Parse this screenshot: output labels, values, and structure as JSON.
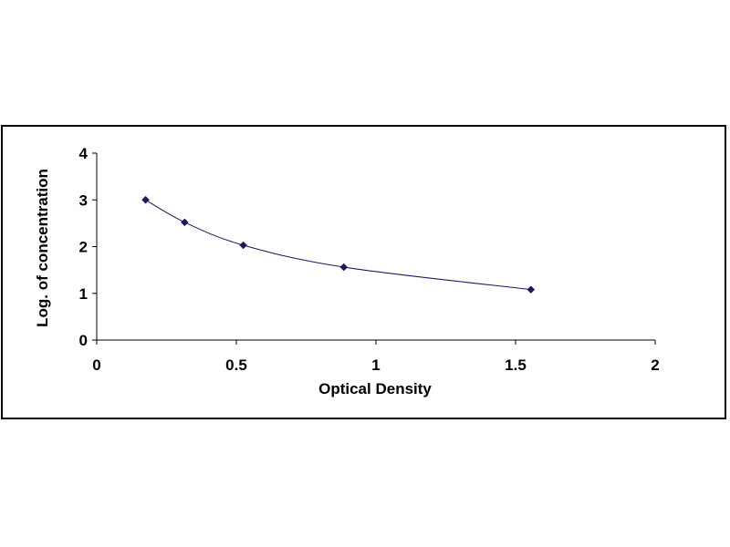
{
  "chart_data": {
    "type": "scatter",
    "xlabel": "Optical Density",
    "ylabel": "Log. of concentration",
    "xlim": [
      0,
      2
    ],
    "ylim": [
      0,
      4
    ],
    "x_ticks": [
      "0",
      "0.5",
      "1",
      "1.5",
      "2"
    ],
    "y_ticks": [
      "0",
      "1",
      "2",
      "3",
      "4"
    ],
    "grid": false,
    "legend": "none",
    "trendline": "smooth curve through points",
    "series": [
      {
        "x": [
          0.175,
          0.315,
          0.525,
          0.885,
          1.555
        ],
        "y": [
          3.0,
          2.52,
          2.03,
          1.56,
          1.08
        ],
        "color": "#1a1a5e"
      }
    ]
  }
}
